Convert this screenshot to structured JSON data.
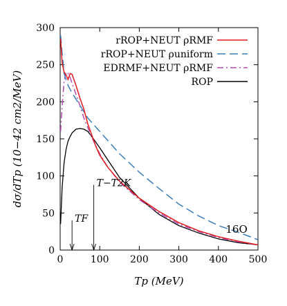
{
  "chart_data": {
    "type": "line",
    "xlabel": "Tp (MeV)",
    "ylabel": "dσ/dTp (10−42 cm2/MeV)",
    "xlim": [
      0,
      500
    ],
    "ylim": [
      0,
      300
    ],
    "x_ticks": [
      0,
      100,
      200,
      300,
      400,
      500
    ],
    "y_ticks": [
      0,
      50,
      100,
      150,
      200,
      250,
      300
    ],
    "grid": false,
    "legend_position": "top-right",
    "series": [
      {
        "name": "rROP+NEUT ρRMF",
        "color": "#e41a1c",
        "dash": "solid",
        "points": [
          [
            1,
            285
          ],
          [
            5,
            252
          ],
          [
            10,
            240
          ],
          [
            15,
            236
          ],
          [
            20,
            230
          ],
          [
            25,
            238
          ],
          [
            30,
            237
          ],
          [
            40,
            222
          ],
          [
            50,
            205
          ],
          [
            60,
            190
          ],
          [
            70,
            170
          ],
          [
            80,
            155
          ],
          [
            90,
            140
          ],
          [
            100,
            128
          ],
          [
            120,
            112
          ],
          [
            150,
            93
          ],
          [
            200,
            70
          ],
          [
            250,
            52
          ],
          [
            300,
            37
          ],
          [
            350,
            26
          ],
          [
            400,
            18
          ],
          [
            450,
            12
          ],
          [
            500,
            7
          ]
        ]
      },
      {
        "name": "rROP+NEUT ρuniform",
        "color": "#3a7ebf",
        "dash": "long-dash",
        "points": [
          [
            1,
            290
          ],
          [
            5,
            265
          ],
          [
            10,
            238
          ],
          [
            20,
            222
          ],
          [
            30,
            212
          ],
          [
            50,
            195
          ],
          [
            70,
            178
          ],
          [
            100,
            160
          ],
          [
            150,
            130
          ],
          [
            200,
            105
          ],
          [
            250,
            83
          ],
          [
            300,
            62
          ],
          [
            350,
            46
          ],
          [
            400,
            33
          ],
          [
            450,
            24
          ],
          [
            500,
            14
          ]
        ]
      },
      {
        "name": "EDRMF+NEUT ρRMF",
        "color": "#b04ab0",
        "dash": "dash-dot",
        "points": [
          [
            1,
            160
          ],
          [
            5,
            195
          ],
          [
            10,
            228
          ],
          [
            15,
            240
          ],
          [
            20,
            238
          ],
          [
            25,
            233
          ],
          [
            30,
            225
          ],
          [
            40,
            210
          ],
          [
            50,
            195
          ],
          [
            60,
            178
          ],
          [
            70,
            165
          ],
          [
            80,
            152
          ],
          [
            100,
            130
          ],
          [
            120,
            112
          ],
          [
            150,
            92
          ],
          [
            200,
            68
          ],
          [
            250,
            50
          ],
          [
            300,
            35
          ],
          [
            350,
            25
          ],
          [
            400,
            17
          ],
          [
            450,
            11
          ],
          [
            500,
            7
          ]
        ]
      },
      {
        "name": "ROP",
        "color": "#000000",
        "dash": "solid",
        "points": [
          [
            1,
            35
          ],
          [
            5,
            85
          ],
          [
            10,
            118
          ],
          [
            15,
            136
          ],
          [
            20,
            147
          ],
          [
            25,
            153
          ],
          [
            30,
            158
          ],
          [
            40,
            163
          ],
          [
            50,
            164
          ],
          [
            60,
            163
          ],
          [
            70,
            160
          ],
          [
            80,
            153
          ],
          [
            100,
            138
          ],
          [
            120,
            122
          ],
          [
            150,
            98
          ],
          [
            200,
            70
          ],
          [
            250,
            48
          ],
          [
            300,
            33
          ],
          [
            350,
            23
          ],
          [
            400,
            15
          ],
          [
            450,
            10
          ],
          [
            500,
            7
          ]
        ]
      }
    ],
    "annotations": [
      {
        "text": "16O",
        "x": 450,
        "y": 28
      },
      {
        "text": "TF",
        "x": 30,
        "arrow_from_y": 40,
        "arrow_to_y": 0
      },
      {
        "text": "T−T2K",
        "x": 85,
        "arrow_from_y": 88,
        "arrow_to_y": 0
      }
    ]
  }
}
